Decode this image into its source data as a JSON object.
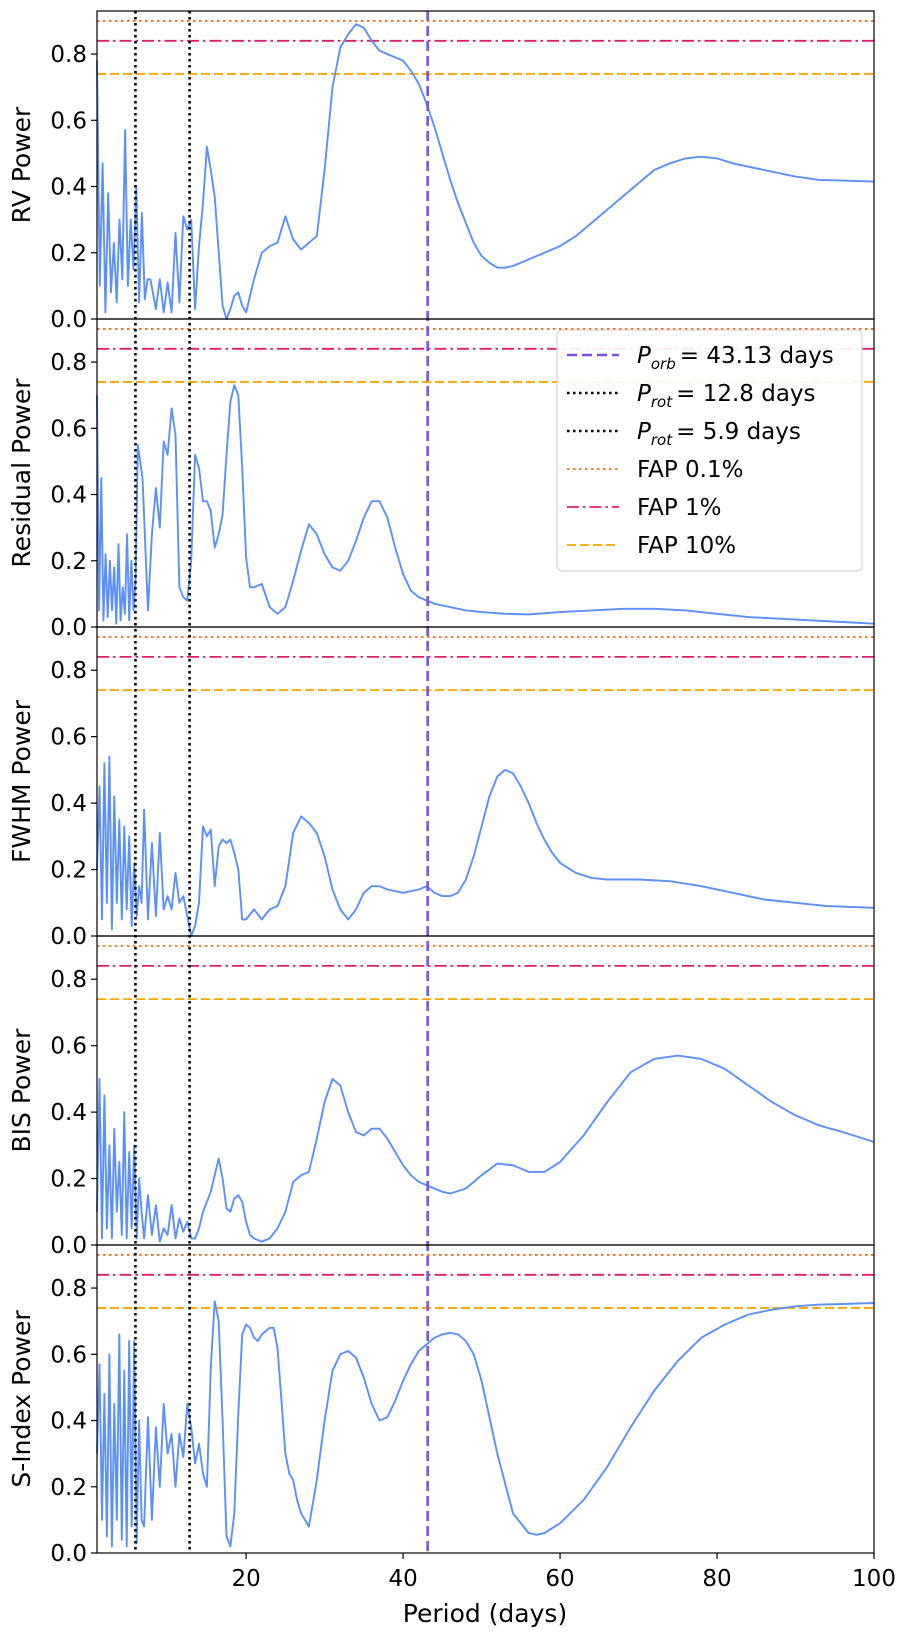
{
  "chart_data": {
    "type": "line",
    "xlabel": "Period (days)",
    "xlim": [
      1,
      100
    ],
    "xticks": [
      20,
      40,
      60,
      80,
      100
    ],
    "yticks": [
      0.0,
      0.2,
      0.4,
      0.6,
      0.8
    ],
    "ylim": [
      0,
      0.93
    ],
    "colors": {
      "periodogram": "#5b8ff9",
      "p_orb": "#7b4fe8",
      "p_rot": "#000000",
      "fap_01": "#ff6a1a",
      "fap_1": "#e01b6a",
      "fap_10": "#ffa500"
    },
    "vertical_lines": [
      {
        "key": "p_orb",
        "x": 43.13
      },
      {
        "key": "p_rot_a",
        "x": 12.8
      },
      {
        "key": "p_rot_b",
        "x": 5.9
      }
    ],
    "legend": {
      "placement": "top-right of panel 2",
      "entries": [
        {
          "key": "p_orb",
          "sym": "P",
          "sub": "orb",
          "value": "= 43.13 days"
        },
        {
          "key": "p_rot_a",
          "sym": "P",
          "sub": "rot",
          "value": "= 12.8 days"
        },
        {
          "key": "p_rot_b",
          "sym": "P",
          "sub": "rot",
          "value": "= 5.9 days"
        },
        {
          "key": "fap_01",
          "label": "FAP 0.1%"
        },
        {
          "key": "fap_1",
          "label": "FAP 1%"
        },
        {
          "key": "fap_10",
          "label": "FAP 10%"
        }
      ]
    },
    "panels": [
      {
        "ylabel": "RV Power",
        "fap": {
          "fap_01": 0.9,
          "fap_1": 0.84,
          "fap_10": 0.74
        },
        "low_period": [
          0.78,
          0.1,
          0.47,
          0.02,
          0.38,
          0.08,
          0.23,
          0.05,
          0.3,
          0.12,
          0.57,
          0.1,
          0.3,
          0.15,
          0.4,
          0.05,
          0.32,
          0.06,
          0.12
        ],
        "x": [
          7.8,
          8.5,
          9.0,
          9.5,
          10.0,
          10.5,
          11.0,
          11.5,
          12.0,
          12.5,
          13.0,
          13.5,
          14.0,
          14.5,
          15.0,
          15.5,
          16.0,
          17.0,
          17.5,
          18.0,
          18.5,
          19.0,
          19.5,
          20.0,
          21.0,
          22.0,
          23.0,
          24.0,
          25.0,
          26.0,
          27.0,
          28.0,
          29.0,
          30.0,
          31.0,
          32.0,
          33.0,
          34.0,
          35.0,
          36.0,
          37.0,
          38.0,
          39.0,
          40.0,
          41.0,
          42.0,
          43.0,
          44.0,
          45.0,
          46.0,
          47.0,
          48.0,
          49.0,
          50.0,
          51.0,
          52.0,
          53.0,
          54.0,
          56.0,
          58.0,
          60.0,
          62.0,
          64.0,
          66.0,
          68.0,
          70.0,
          72.0,
          74.0,
          76.0,
          78.0,
          80.0,
          82.0,
          84.0,
          86.0,
          88.0,
          90.0,
          93.0,
          96.0,
          100.0
        ],
        "y": [
          0.12,
          0.03,
          0.12,
          0.02,
          0.11,
          0.02,
          0.26,
          0.05,
          0.31,
          0.27,
          0.3,
          0.03,
          0.22,
          0.35,
          0.52,
          0.45,
          0.37,
          0.04,
          0.0,
          0.03,
          0.07,
          0.08,
          0.04,
          0.02,
          0.12,
          0.2,
          0.22,
          0.23,
          0.31,
          0.24,
          0.21,
          0.23,
          0.25,
          0.45,
          0.7,
          0.82,
          0.86,
          0.89,
          0.88,
          0.84,
          0.81,
          0.8,
          0.79,
          0.78,
          0.75,
          0.71,
          0.65,
          0.58,
          0.5,
          0.42,
          0.35,
          0.29,
          0.23,
          0.19,
          0.17,
          0.155,
          0.155,
          0.16,
          0.18,
          0.2,
          0.22,
          0.25,
          0.29,
          0.33,
          0.37,
          0.41,
          0.45,
          0.47,
          0.485,
          0.49,
          0.485,
          0.47,
          0.46,
          0.45,
          0.44,
          0.43,
          0.42,
          0.418,
          0.415
        ]
      },
      {
        "ylabel": "Residual Power",
        "fap": {
          "fap_01": 0.9,
          "fap_1": 0.84,
          "fap_10": 0.74
        },
        "low_period": [
          0.7,
          0.05,
          0.45,
          0.02,
          0.22,
          0.03,
          0.2,
          0.05,
          0.18,
          0.01,
          0.25,
          0.02,
          0.12,
          0.04,
          0.28,
          0.02,
          0.2,
          0.05,
          0.15
        ],
        "x": [
          6.2,
          6.8,
          7.5,
          8.0,
          8.5,
          9.0,
          9.5,
          10.0,
          10.5,
          11.0,
          11.5,
          12.0,
          12.5,
          13.0,
          13.5,
          14.0,
          14.5,
          15.0,
          15.5,
          16.0,
          16.5,
          17.0,
          17.5,
          18.0,
          18.5,
          19.0,
          19.5,
          20.0,
          20.5,
          21.0,
          22.0,
          23.0,
          24.0,
          25.0,
          26.0,
          27.0,
          28.0,
          29.0,
          30.0,
          31.0,
          32.0,
          33.0,
          34.0,
          35.0,
          36.0,
          37.0,
          38.0,
          39.0,
          40.0,
          41.0,
          42.0,
          43.0,
          44.0,
          46.0,
          48.0,
          50.0,
          53.0,
          56.0,
          60.0,
          64.0,
          68.0,
          72.0,
          76.0,
          80.0,
          84.0,
          88.0,
          92.0,
          96.0,
          100.0
        ],
        "y": [
          0.55,
          0.45,
          0.05,
          0.28,
          0.42,
          0.3,
          0.56,
          0.52,
          0.66,
          0.58,
          0.12,
          0.09,
          0.08,
          0.2,
          0.52,
          0.48,
          0.38,
          0.38,
          0.35,
          0.24,
          0.28,
          0.34,
          0.52,
          0.68,
          0.73,
          0.7,
          0.48,
          0.21,
          0.12,
          0.12,
          0.13,
          0.06,
          0.04,
          0.06,
          0.14,
          0.23,
          0.31,
          0.28,
          0.22,
          0.18,
          0.17,
          0.2,
          0.26,
          0.33,
          0.38,
          0.38,
          0.33,
          0.24,
          0.16,
          0.11,
          0.09,
          0.08,
          0.07,
          0.06,
          0.05,
          0.045,
          0.04,
          0.038,
          0.045,
          0.05,
          0.055,
          0.055,
          0.05,
          0.04,
          0.03,
          0.025,
          0.02,
          0.015,
          0.01
        ]
      },
      {
        "ylabel": "FWHM Power",
        "fap": {
          "fap_01": 0.9,
          "fap_1": 0.84,
          "fap_10": 0.74
        },
        "low_period": [
          0.2,
          0.45,
          0.05,
          0.52,
          0.1,
          0.54,
          0.02,
          0.42,
          0.1,
          0.35,
          0.05,
          0.33,
          0.08,
          0.3,
          0.03,
          0.22,
          0.06,
          0.15,
          0.1
        ],
        "x": [
          7.0,
          7.5,
          8.0,
          8.5,
          9.0,
          9.5,
          10.0,
          10.5,
          11.0,
          11.5,
          12.0,
          12.5,
          13.0,
          13.5,
          14.0,
          14.5,
          15.0,
          15.5,
          16.0,
          16.5,
          17.0,
          17.5,
          18.0,
          18.5,
          19.0,
          19.5,
          20.0,
          21.0,
          22.0,
          23.0,
          24.0,
          25.0,
          26.0,
          27.0,
          28.0,
          29.0,
          30.0,
          31.0,
          32.0,
          33.0,
          34.0,
          35.0,
          36.0,
          37.0,
          38.0,
          40.0,
          42.0,
          43.0,
          44.0,
          45.0,
          46.0,
          47.0,
          48.0,
          49.0,
          50.0,
          51.0,
          52.0,
          53.0,
          54.0,
          55.0,
          56.0,
          57.0,
          58.0,
          59.0,
          60.0,
          62.0,
          64.0,
          66.0,
          68.0,
          70.0,
          74.0,
          78.0,
          82.0,
          86.0,
          90.0,
          94.0,
          100.0
        ],
        "y": [
          0.38,
          0.05,
          0.28,
          0.06,
          0.31,
          0.08,
          0.12,
          0.08,
          0.19,
          0.1,
          0.12,
          0.06,
          0.0,
          0.03,
          0.1,
          0.33,
          0.3,
          0.32,
          0.15,
          0.27,
          0.29,
          0.28,
          0.29,
          0.25,
          0.2,
          0.05,
          0.05,
          0.08,
          0.05,
          0.08,
          0.09,
          0.15,
          0.31,
          0.36,
          0.34,
          0.31,
          0.24,
          0.14,
          0.08,
          0.05,
          0.08,
          0.13,
          0.15,
          0.15,
          0.14,
          0.13,
          0.14,
          0.15,
          0.13,
          0.12,
          0.12,
          0.13,
          0.17,
          0.24,
          0.33,
          0.42,
          0.48,
          0.5,
          0.49,
          0.45,
          0.4,
          0.34,
          0.29,
          0.25,
          0.22,
          0.19,
          0.175,
          0.17,
          0.17,
          0.17,
          0.165,
          0.15,
          0.13,
          0.11,
          0.1,
          0.09,
          0.085
        ]
      },
      {
        "ylabel": "BIS Power",
        "fap": {
          "fap_01": 0.9,
          "fap_1": 0.84,
          "fap_10": 0.74
        },
        "low_period": [
          0.1,
          0.5,
          0.02,
          0.45,
          0.05,
          0.3,
          0.02,
          0.35,
          0.1,
          0.25,
          0.03,
          0.4,
          0.02,
          0.28,
          0.05,
          0.3,
          0.02,
          0.2,
          0.1
        ],
        "x": [
          7.0,
          7.5,
          8.0,
          8.5,
          9.0,
          9.5,
          10.0,
          10.5,
          11.0,
          11.5,
          12.0,
          12.5,
          13.0,
          13.5,
          14.0,
          14.5,
          15.0,
          15.5,
          16.0,
          16.5,
          17.0,
          17.5,
          18.0,
          18.5,
          19.0,
          19.5,
          20.0,
          20.5,
          21.0,
          22.0,
          23.0,
          24.0,
          25.0,
          26.0,
          27.0,
          28.0,
          29.0,
          30.0,
          31.0,
          32.0,
          33.0,
          34.0,
          35.0,
          36.0,
          37.0,
          38.0,
          39.0,
          40.0,
          41.0,
          42.0,
          43.0,
          44.0,
          45.0,
          46.0,
          48.0,
          50.0,
          52.0,
          54.0,
          56.0,
          58.0,
          60.0,
          63.0,
          66.0,
          69.0,
          72.0,
          75.0,
          78.0,
          81.0,
          84.0,
          87.0,
          90.0,
          93.0,
          96.0,
          100.0
        ],
        "y": [
          0.02,
          0.15,
          0.03,
          0.12,
          0.01,
          0.05,
          0.03,
          0.12,
          0.02,
          0.08,
          0.04,
          0.07,
          0.02,
          0.02,
          0.05,
          0.1,
          0.13,
          0.16,
          0.21,
          0.26,
          0.2,
          0.11,
          0.1,
          0.14,
          0.15,
          0.13,
          0.07,
          0.03,
          0.02,
          0.01,
          0.02,
          0.05,
          0.1,
          0.19,
          0.21,
          0.22,
          0.32,
          0.43,
          0.5,
          0.48,
          0.4,
          0.34,
          0.33,
          0.35,
          0.35,
          0.32,
          0.28,
          0.24,
          0.21,
          0.19,
          0.18,
          0.17,
          0.16,
          0.155,
          0.17,
          0.21,
          0.245,
          0.24,
          0.22,
          0.22,
          0.25,
          0.33,
          0.43,
          0.52,
          0.56,
          0.57,
          0.56,
          0.53,
          0.48,
          0.43,
          0.39,
          0.36,
          0.34,
          0.31
        ]
      },
      {
        "ylabel": "S-Index Power",
        "fap": {
          "fap_01": 0.9,
          "fap_1": 0.84,
          "fap_10": 0.74
        },
        "low_period": [
          0.3,
          0.57,
          0.1,
          0.48,
          0.05,
          0.6,
          0.02,
          0.45,
          0.1,
          0.66,
          0.04,
          0.55,
          0.02,
          0.64,
          0.08,
          0.64,
          0.03,
          0.4,
          0.1
        ],
        "x": [
          7.0,
          7.5,
          8.0,
          8.5,
          9.0,
          9.5,
          10.0,
          10.5,
          11.0,
          11.5,
          12.0,
          12.5,
          13.0,
          13.5,
          14.0,
          14.5,
          15.0,
          15.5,
          16.0,
          16.5,
          17.0,
          17.5,
          18.0,
          18.5,
          19.0,
          19.5,
          20.0,
          20.5,
          21.0,
          21.5,
          22.0,
          23.0,
          23.5,
          24.0,
          25.0,
          25.5,
          26.0,
          26.5,
          27.0,
          28.0,
          29.0,
          30.0,
          31.0,
          32.0,
          33.0,
          34.0,
          35.0,
          36.0,
          37.0,
          38.0,
          39.0,
          40.0,
          41.0,
          42.0,
          43.0,
          44.0,
          45.0,
          46.0,
          47.0,
          48.0,
          49.0,
          50.0,
          52.0,
          54.0,
          56.0,
          57.0,
          58.0,
          60.0,
          63.0,
          66.0,
          69.0,
          72.0,
          75.0,
          78.0,
          81.0,
          84.0,
          87.0,
          90.0,
          93.0,
          96.0,
          100.0
        ],
        "y": [
          0.08,
          0.41,
          0.1,
          0.38,
          0.2,
          0.45,
          0.3,
          0.36,
          0.2,
          0.36,
          0.29,
          0.45,
          0.38,
          0.27,
          0.33,
          0.24,
          0.2,
          0.56,
          0.76,
          0.7,
          0.4,
          0.05,
          0.02,
          0.12,
          0.42,
          0.66,
          0.69,
          0.68,
          0.65,
          0.64,
          0.66,
          0.68,
          0.68,
          0.62,
          0.3,
          0.24,
          0.22,
          0.16,
          0.12,
          0.08,
          0.22,
          0.4,
          0.55,
          0.6,
          0.61,
          0.59,
          0.53,
          0.45,
          0.4,
          0.41,
          0.46,
          0.52,
          0.57,
          0.61,
          0.63,
          0.65,
          0.66,
          0.665,
          0.66,
          0.64,
          0.6,
          0.52,
          0.3,
          0.12,
          0.06,
          0.055,
          0.06,
          0.09,
          0.16,
          0.26,
          0.38,
          0.49,
          0.58,
          0.65,
          0.69,
          0.72,
          0.735,
          0.745,
          0.75,
          0.752,
          0.755
        ]
      }
    ]
  }
}
